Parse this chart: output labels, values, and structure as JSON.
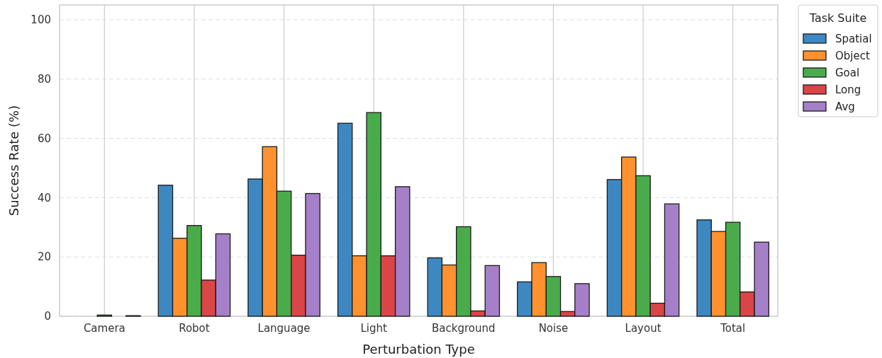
{
  "chart_data": {
    "type": "bar",
    "xlabel": "Perturbation Type",
    "ylabel": "Success Rate (%)",
    "legend_title": "Task Suite",
    "categories": [
      "Camera",
      "Robot",
      "Language",
      "Light",
      "Background",
      "Noise",
      "Layout",
      "Total"
    ],
    "series": [
      {
        "name": "Spatial",
        "color": "#3d88c1",
        "values": [
          0,
          44.2,
          46.3,
          65.1,
          19.7,
          11.6,
          46.1,
          32.5
        ]
      },
      {
        "name": "Object",
        "color": "#ff922f",
        "values": [
          0,
          26.3,
          57.2,
          20.4,
          17.3,
          18.1,
          53.7,
          28.6
        ]
      },
      {
        "name": "Goal",
        "color": "#4aab4a",
        "values": [
          0.4,
          30.6,
          42.2,
          68.7,
          30.2,
          13.4,
          47.4,
          31.7
        ]
      },
      {
        "name": "Long",
        "color": "#da4547",
        "values": [
          0,
          12.2,
          20.6,
          20.4,
          1.8,
          1.6,
          4.4,
          8.2
        ]
      },
      {
        "name": "Avg",
        "color": "#a580c8",
        "values": [
          0.2,
          27.8,
          41.4,
          43.7,
          17.1,
          11.0,
          37.9,
          25.0
        ]
      }
    ],
    "ylim": [
      0,
      105
    ],
    "yticks": [
      0,
      20,
      40,
      60,
      80,
      100
    ],
    "grid": true,
    "legend": "top right"
  }
}
